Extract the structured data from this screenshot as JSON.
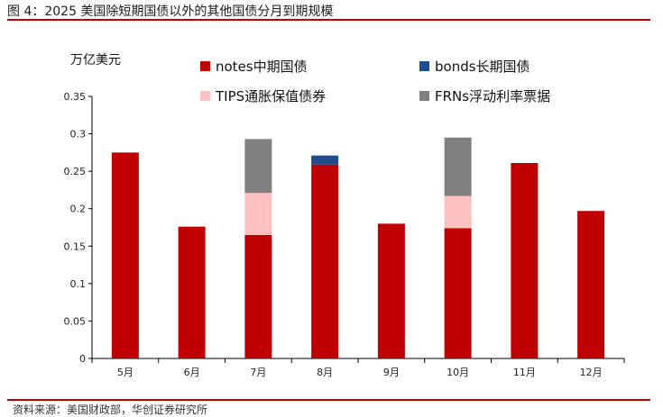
{
  "figure_title": "图 4：2025 美国除短期国债以外的其他国债分月到期规模",
  "source_note": "资料来源：美国财政部，华创证券研究所",
  "colors": {
    "rule": "#c00000",
    "notes": "#c00000",
    "bonds": "#1f4e8c",
    "tips": "#ffc0c0",
    "frns": "#808080"
  },
  "chart_data": {
    "type": "bar",
    "stacked": true,
    "ylabel": "万亿美元",
    "ylim": [
      0,
      0.35
    ],
    "yticks": [
      "0",
      "0.05",
      "0.1",
      "0.15",
      "0.2",
      "0.25",
      "0.3",
      "0.35"
    ],
    "categories": [
      "5月",
      "6月",
      "7月",
      "8月",
      "9月",
      "10月",
      "11月",
      "12月"
    ],
    "series": [
      {
        "name": "notes中期国债",
        "color": "#c00000",
        "values": [
          0.275,
          0.176,
          0.165,
          0.259,
          0.18,
          0.174,
          0.261,
          0.197
        ]
      },
      {
        "name": "bonds长期国债",
        "color": "#1f4e8c",
        "values": [
          0,
          0,
          0,
          0.012,
          0,
          0,
          0,
          0
        ]
      },
      {
        "name": "TIPS通胀保值债券",
        "color": "#ffc0c0",
        "values": [
          0,
          0,
          0.056,
          0,
          0,
          0.043,
          0,
          0
        ]
      },
      {
        "name": "FRNs浮动利率票据",
        "color": "#808080",
        "values": [
          0,
          0,
          0.072,
          0,
          0,
          0.078,
          0,
          0
        ]
      }
    ],
    "legend": {
      "position": "top",
      "order": [
        "notes中期国债",
        "bonds长期国债",
        "TIPS通胀保值债券",
        "FRNs浮动利率票据"
      ]
    },
    "grid": false
  }
}
